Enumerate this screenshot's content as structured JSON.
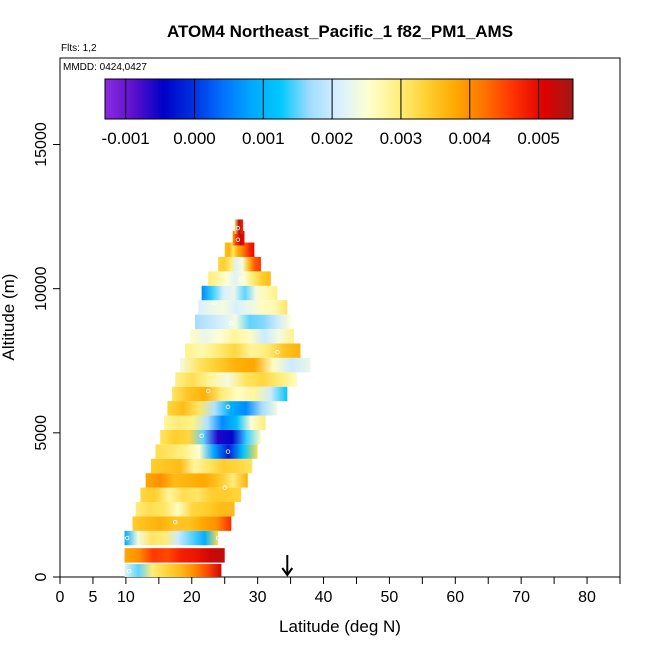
{
  "chart_data": {
    "type": "heatmap",
    "title": "ATOM4 Northeast_Pacific_1 f82_PM1_AMS",
    "flights_label": "Flts: 1,2",
    "dates_label": "MMDD: 0424,0427",
    "xlabel": "Latitude (deg N)",
    "ylabel": "Altitude (m)",
    "xlim": [
      0,
      85
    ],
    "ylim": [
      0,
      18000
    ],
    "x_ticks": [
      0,
      5,
      10,
      20,
      30,
      40,
      50,
      60,
      70,
      80
    ],
    "x_minor_ticks": [
      15,
      25,
      35,
      45,
      55,
      65,
      75,
      85
    ],
    "y_ticks": [
      0,
      5000,
      10000,
      15000
    ],
    "marker_latitude": 34.5,
    "colorbar": {
      "vmin": -0.0013,
      "vmax": 0.0055,
      "tick_values": [
        -0.001,
        0.0,
        0.001,
        0.002,
        0.003,
        0.004,
        0.005
      ],
      "tick_labels": [
        "-0.001",
        "0.000",
        "0.001",
        "0.002",
        "0.003",
        "0.004",
        "0.005"
      ],
      "colors": [
        "#8a2be2",
        "#5a10cc",
        "#0000c8",
        "#0030e0",
        "#0070ff",
        "#00a8ff",
        "#00c8ff",
        "#a0dcff",
        "#d8f0ff",
        "#ffffd0",
        "#fff080",
        "#ffd030",
        "#ffa800",
        "#ff7000",
        "#ff3000",
        "#e00000",
        "#a01818"
      ]
    },
    "layers": [
      {
        "alt": 200,
        "lat_min": 9.8,
        "lat_max": 24.5,
        "values": [
          0.0022,
          0.0015,
          0.003,
          0.0033,
          0.0036,
          0.004,
          0.0045,
          0.0052
        ]
      },
      {
        "alt": 750,
        "lat_min": 9.8,
        "lat_max": 25.0,
        "values": [
          0.0038,
          0.004,
          0.0046,
          0.0045,
          0.0048,
          0.0049,
          0.0052,
          0.0053
        ]
      },
      {
        "alt": 1350,
        "lat_min": 9.8,
        "lat_max": 24.0,
        "values": [
          0.0008,
          0.0024,
          0.0031,
          0.003,
          0.002,
          0.0015,
          0.0009,
          0.0032
        ]
      },
      {
        "alt": 1850,
        "lat_min": 11.0,
        "lat_max": 26.0,
        "values": [
          0.0034,
          0.0036,
          0.0037,
          0.0035,
          0.0035,
          0.0038,
          0.004,
          0.0047
        ]
      },
      {
        "alt": 2350,
        "lat_min": 11.5,
        "lat_max": 26.5,
        "values": [
          0.003,
          0.0032,
          0.0031,
          0.0026,
          0.0033,
          0.0034,
          0.0036,
          0.0036
        ]
      },
      {
        "alt": 2850,
        "lat_min": 12.2,
        "lat_max": 27.5,
        "values": [
          0.0033,
          0.0034,
          0.0028,
          0.0032,
          0.0031,
          0.0034,
          0.0034,
          0.0033
        ]
      },
      {
        "alt": 3350,
        "lat_min": 13.0,
        "lat_max": 28.5,
        "values": [
          0.0038,
          0.004,
          0.0036,
          0.0037,
          0.0038,
          0.0035,
          0.003,
          0.0037
        ]
      },
      {
        "alt": 3850,
        "lat_min": 13.8,
        "lat_max": 29.2,
        "values": [
          0.0034,
          0.0035,
          0.0036,
          0.0028,
          0.0031,
          0.0034,
          0.0033,
          0.0031
        ]
      },
      {
        "alt": 4350,
        "lat_min": 14.5,
        "lat_max": 30.0,
        "values": [
          0.0032,
          0.0031,
          0.0029,
          0.0025,
          0.0008,
          -0.0002,
          0.0012,
          0.0032
        ]
      },
      {
        "alt": 4850,
        "lat_min": 15.2,
        "lat_max": 30.5,
        "values": [
          0.0031,
          0.0034,
          0.0033,
          0.0015,
          -0.0006,
          -0.0004,
          0.0014,
          0.0026
        ]
      },
      {
        "alt": 5350,
        "lat_min": 15.8,
        "lat_max": 31.2,
        "values": [
          0.0028,
          0.003,
          0.0029,
          0.0018,
          0.0006,
          0.0011,
          0.0025,
          0.003
        ]
      },
      {
        "alt": 5850,
        "lat_min": 16.3,
        "lat_max": 33.0,
        "values": [
          0.0033,
          0.0036,
          0.0031,
          0.0018,
          0.0009,
          0.0006,
          0.0017,
          0.0024
        ]
      },
      {
        "alt": 6350,
        "lat_min": 17.0,
        "lat_max": 34.5,
        "values": [
          0.0031,
          0.0035,
          0.0037,
          0.003,
          0.0026,
          0.0028,
          0.002,
          0.0012
        ]
      },
      {
        "alt": 6850,
        "lat_min": 17.5,
        "lat_max": 36.0,
        "values": [
          0.0029,
          0.0032,
          0.0028,
          0.0024,
          0.0031,
          0.0033,
          0.003,
          0.0026
        ]
      },
      {
        "alt": 7350,
        "lat_min": 18.2,
        "lat_max": 38.0,
        "values": [
          0.0024,
          0.0031,
          0.0034,
          0.0037,
          0.0038,
          0.0026,
          0.002,
          0.0023
        ]
      },
      {
        "alt": 7850,
        "lat_min": 19.0,
        "lat_max": 36.5,
        "values": [
          0.0029,
          0.0027,
          0.003,
          0.0033,
          0.0028,
          0.003,
          0.0035,
          0.0037
        ]
      },
      {
        "alt": 8350,
        "lat_min": 19.8,
        "lat_max": 35.5,
        "values": [
          0.0026,
          0.0023,
          0.0025,
          0.0028,
          0.0026,
          0.002,
          0.0024,
          0.0029
        ]
      },
      {
        "alt": 8850,
        "lat_min": 20.5,
        "lat_max": 35.0,
        "values": [
          0.0017,
          0.0019,
          0.0021,
          0.0024,
          0.0015,
          0.0016,
          0.002,
          0.0025
        ]
      },
      {
        "alt": 9350,
        "lat_min": 21.0,
        "lat_max": 34.5,
        "values": [
          0.0021,
          0.0023,
          0.0024,
          0.0021,
          0.0023,
          0.0026,
          0.0027,
          0.0031
        ]
      },
      {
        "alt": 9850,
        "lat_min": 21.5,
        "lat_max": 33.0,
        "values": [
          0.0006,
          0.0014,
          0.0021,
          0.0023,
          0.0015,
          0.0024,
          0.0027,
          0.0029
        ]
      },
      {
        "alt": 10350,
        "lat_min": 22.5,
        "lat_max": 32.0,
        "values": [
          0.003,
          0.0028,
          0.0025,
          0.0022,
          0.0025,
          0.003,
          0.0034,
          0.0036
        ]
      },
      {
        "alt": 10850,
        "lat_min": 24.0,
        "lat_max": 30.5,
        "values": [
          0.0033,
          0.0034,
          0.003,
          0.0022,
          0.0024,
          0.0036,
          0.0044,
          0.0046
        ]
      },
      {
        "alt": 11350,
        "lat_min": 25.0,
        "lat_max": 29.5,
        "values": [
          0.0035,
          0.0037,
          0.0031,
          0.0037,
          0.004,
          0.0044,
          0.0048,
          0.005
        ]
      },
      {
        "alt": 11750,
        "lat_min": 26.2,
        "lat_max": 28.0,
        "values": [
          0.0038,
          0.0047,
          0.0052,
          0.005
        ]
      },
      {
        "alt": 12150,
        "lat_min": 26.5,
        "lat_max": 27.8,
        "values": [
          0.003,
          0.0054,
          0.0047
        ]
      }
    ],
    "sample_points": [
      {
        "lat": 10.5,
        "alt": 200
      },
      {
        "lat": 10.2,
        "alt": 1350
      },
      {
        "lat": 17.5,
        "alt": 1900
      },
      {
        "lat": 24.0,
        "alt": 1350
      },
      {
        "lat": 25.0,
        "alt": 3100
      },
      {
        "lat": 25.5,
        "alt": 4350
      },
      {
        "lat": 21.5,
        "alt": 4900
      },
      {
        "lat": 25.5,
        "alt": 5900
      },
      {
        "lat": 22.5,
        "alt": 6450
      },
      {
        "lat": 33.0,
        "alt": 7800
      },
      {
        "lat": 23.5,
        "alt": 9500
      },
      {
        "lat": 27.5,
        "alt": 10350
      },
      {
        "lat": 26.0,
        "alt": 8800
      },
      {
        "lat": 27.0,
        "alt": 11700
      },
      {
        "lat": 27.0,
        "alt": 12100
      }
    ]
  }
}
